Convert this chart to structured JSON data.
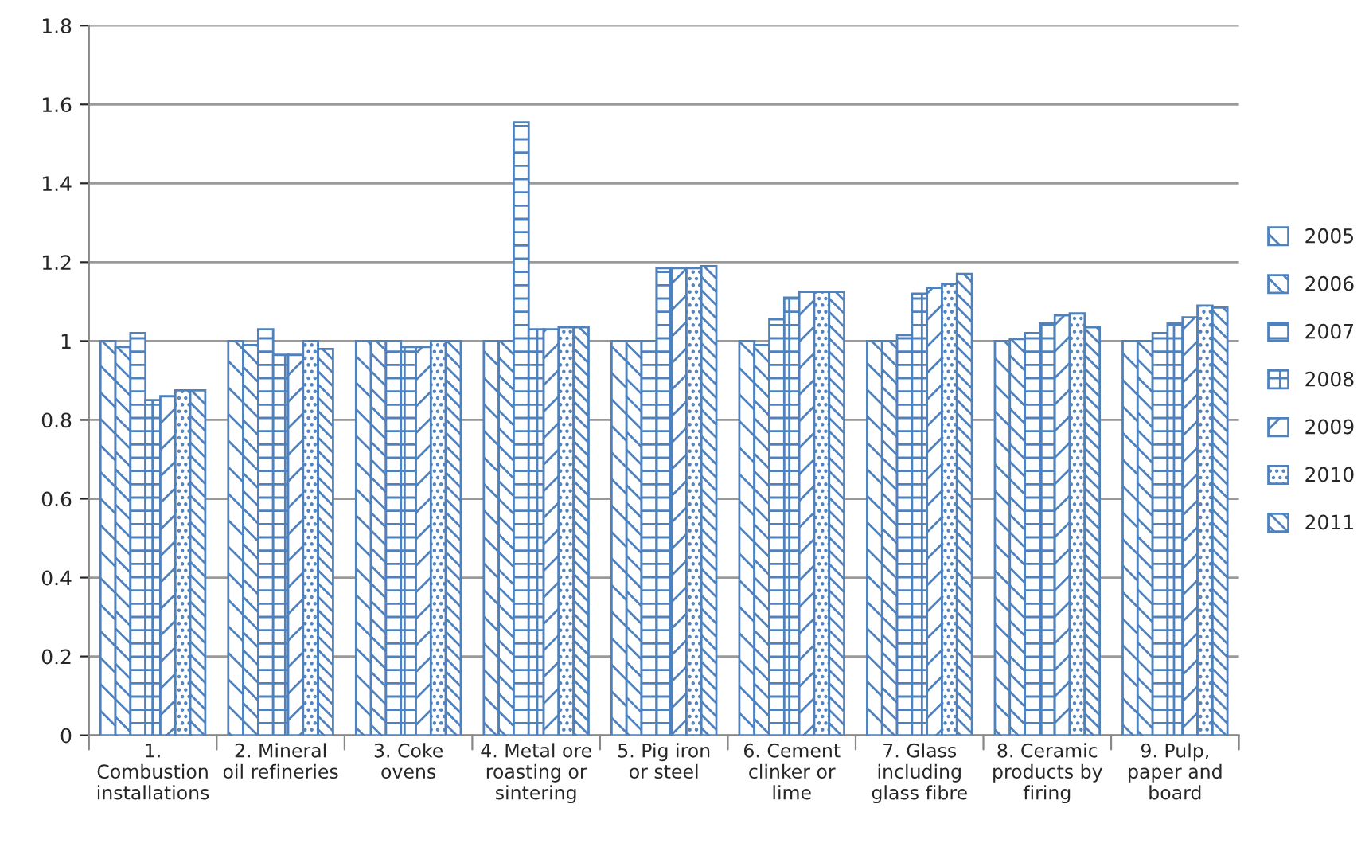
{
  "chart_data": {
    "type": "bar",
    "categories": [
      "1.\nCombustion\ninstallations",
      "2. Mineral\noil refineries",
      "3. Coke\novens",
      "4. Metal ore\nroasting or\nsintering",
      "5. Pig iron\nor steel",
      "6. Cement\nclinker or\nlime",
      "7. Glass\nincluding\nglass fibre",
      "8. Ceramic\nproducts by\nfiring",
      "9. Pulp,\npaper and\nboard"
    ],
    "series": [
      {
        "name": "2005",
        "color": "#4f81bd",
        "values": [
          1.0,
          1.0,
          1.0,
          1.0,
          1.0,
          1.0,
          1.0,
          1.0,
          1.0
        ]
      },
      {
        "name": "2006",
        "color": "#4f81bd",
        "values": [
          0.985,
          0.99,
          1.0,
          1.0,
          1.0,
          0.99,
          1.0,
          1.005,
          1.0
        ]
      },
      {
        "name": "2007",
        "color": "#4f81bd",
        "values": [
          1.02,
          1.03,
          1.0,
          1.555,
          1.0,
          1.055,
          1.015,
          1.02,
          1.02
        ]
      },
      {
        "name": "2008",
        "color": "#4f81bd",
        "values": [
          0.85,
          0.965,
          0.985,
          1.03,
          1.185,
          1.11,
          1.12,
          1.045,
          1.045
        ]
      },
      {
        "name": "2009",
        "color": "#4f81bd",
        "values": [
          0.86,
          0.965,
          0.985,
          1.03,
          1.185,
          1.125,
          1.135,
          1.065,
          1.06
        ]
      },
      {
        "name": "2010",
        "color": "#4f81bd",
        "values": [
          0.875,
          1.0,
          1.0,
          1.035,
          1.185,
          1.125,
          1.145,
          1.07,
          1.09
        ]
      },
      {
        "name": "2011",
        "color": "#4f81bd",
        "values": [
          0.875,
          0.98,
          1.0,
          1.035,
          1.19,
          1.125,
          1.17,
          1.035,
          1.085
        ]
      }
    ],
    "ylim": [
      0,
      1.8
    ],
    "yticks": [
      {
        "value": 0,
        "label": "0"
      },
      {
        "value": 0.2,
        "label": "0.2"
      },
      {
        "value": 0.4,
        "label": "0.4"
      },
      {
        "value": 0.6,
        "label": "0.6"
      },
      {
        "value": 0.8,
        "label": "0.8"
      },
      {
        "value": 1.0,
        "label": "1"
      },
      {
        "value": 1.2,
        "label": "1.2"
      },
      {
        "value": 1.4,
        "label": "1.4"
      },
      {
        "value": 1.6,
        "label": "1.6"
      },
      {
        "value": 1.8,
        "label": "1.8"
      }
    ],
    "grid": "y",
    "legend": "right"
  }
}
